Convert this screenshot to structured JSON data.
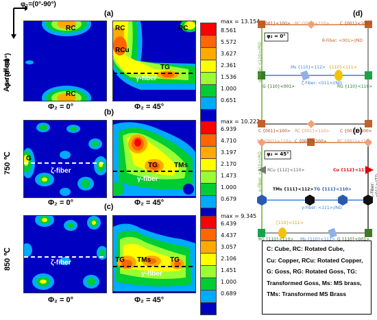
{
  "phi1_label": "φ₁=(0°-90°)",
  "phi_label": "φ= (0°-90°)",
  "rows": [
    {
      "condition": "As-rolled"
    },
    {
      "condition": "750 ℃"
    },
    {
      "condition": "850 ℃"
    }
  ],
  "panels": {
    "a": {
      "letter": "(a)",
      "max": "max = 13.154",
      "left_title": "Φ₂ = 0°",
      "right_title": "Φ₂ = 45°",
      "levels": [
        "8.561",
        "5.572",
        "3.627",
        "2.361",
        "1.536",
        "1.000",
        "0.651"
      ],
      "left_labels": [
        "RC",
        "RC"
      ],
      "right_labels": [
        "RC",
        "RC",
        "RCu",
        "TG",
        "γ-fiber"
      ]
    },
    "b": {
      "letter": "(b)",
      "max": "max = 10.222",
      "left_title": "Φ₂ = 0°",
      "right_title": "Φ₂ = 45°",
      "levels": [
        "6.939",
        "4.710",
        "3.197",
        "2.170",
        "1.473",
        "1.000",
        "0.679"
      ],
      "left_labels": [
        "G",
        "ζ-fiber"
      ],
      "right_labels": [
        "TG",
        "TMs",
        "γ-fiber"
      ]
    },
    "c": {
      "letter": "(c)",
      "max": "max = 9.345",
      "left_title": "Φ₂ = 0°",
      "right_title": "Φ₂ = 45°",
      "levels": [
        "6.439",
        "4.437",
        "3.057",
        "2.106",
        "1.451",
        "1.000",
        "0.689"
      ],
      "left_labels": [
        "ζ-fiber"
      ],
      "right_labels": [
        "TG",
        "TMs",
        "TG",
        "γ-fiber"
      ]
    }
  },
  "colorbar_colors": [
    "#ff0000",
    "#ff6600",
    "#ffaa00",
    "#ffff00",
    "#99ff33",
    "#00cc33",
    "#00aaff",
    "#0000c0"
  ],
  "diagram_d": {
    "letter": "(d)",
    "phi2": "φ₂ = 0°",
    "top_labels": [
      "C {001}<100>",
      "RC {001}<110>",
      "C {001}<100>"
    ],
    "theta_fiber": "θ-Fiber: <001>//ND",
    "mid_labels": [
      "G {110}<001>",
      "Ms {110}<112>",
      "{110}<111>",
      "RG {110}<110>"
    ],
    "zeta_fiber": "ζ-Fiber: <011>//ND",
    "alpha_fiber": "α-Fiber: <110>//RD",
    "bottom_labels": [
      "C {001}<100>",
      "RC {001}<110>",
      "C {001}<100>"
    ]
  },
  "diagram_e": {
    "letter": "(e)",
    "phi2": "φ₂ = 45°",
    "top_labels": [
      "RC {001}<110>",
      "C {001}<100>",
      "RC {001}<110>"
    ],
    "rcu": "RCu {112}<110>",
    "cu": "Cu {112}<111>",
    "tms": "TMs {111}<112>",
    "tg": "TG {111}<110>",
    "gamma_fiber": "γ-Fiber: <111>//ND",
    "alpha_fiber": "α-Fiber: <110>//RD",
    "eps_fiber": "ε-Fiber: <011>//TD",
    "bottom_top_label": "{110}<111>",
    "bottom_labels": [
      "RG {110}<110>",
      "Ms {110}<112>",
      "G {110}<001>"
    ]
  },
  "legend": [
    "C: Cube, RC: Rotated Cube,",
    "Cu: Copper, RCu: Rotated Copper,",
    "G: Goss, RG: Rotated Goss, TG:",
    "Transformed Goss, Ms: MS brass,",
    "TMs: Transformed MS Brass"
  ]
}
